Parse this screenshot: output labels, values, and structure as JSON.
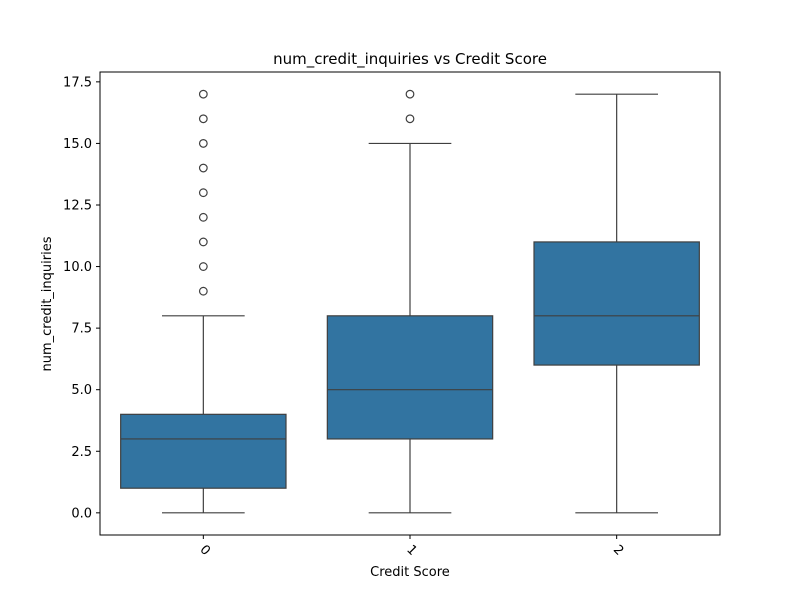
{
  "chart_data": {
    "type": "box",
    "title": "num_credit_inquiries vs Credit Score",
    "xlabel": "Credit Score",
    "ylabel": "num_credit_inquiries",
    "categories": [
      "0",
      "1",
      "2"
    ],
    "ylim": [
      -0.9,
      17.9
    ],
    "yticks": [
      0.0,
      2.5,
      5.0,
      7.5,
      10.0,
      12.5,
      15.0,
      17.5
    ],
    "ytick_labels": [
      "0.0",
      "2.5",
      "5.0",
      "7.5",
      "10.0",
      "12.5",
      "15.0",
      "17.5"
    ],
    "xtick_rotation": 45,
    "grid": false,
    "color": "#3274a1",
    "line_color": "#3f3f3f",
    "boxes": [
      {
        "category": "0",
        "whisker_low": 0,
        "q1": 1,
        "median": 3,
        "q3": 4,
        "whisker_high": 8,
        "outliers": [
          9,
          10,
          11,
          12,
          13,
          14,
          15,
          16,
          17
        ]
      },
      {
        "category": "1",
        "whisker_low": 0,
        "q1": 3,
        "median": 5,
        "q3": 8,
        "whisker_high": 15,
        "outliers": [
          16,
          17
        ]
      },
      {
        "category": "2",
        "whisker_low": 0,
        "q1": 6,
        "median": 8,
        "q3": 11,
        "whisker_high": 17,
        "outliers": []
      }
    ]
  }
}
